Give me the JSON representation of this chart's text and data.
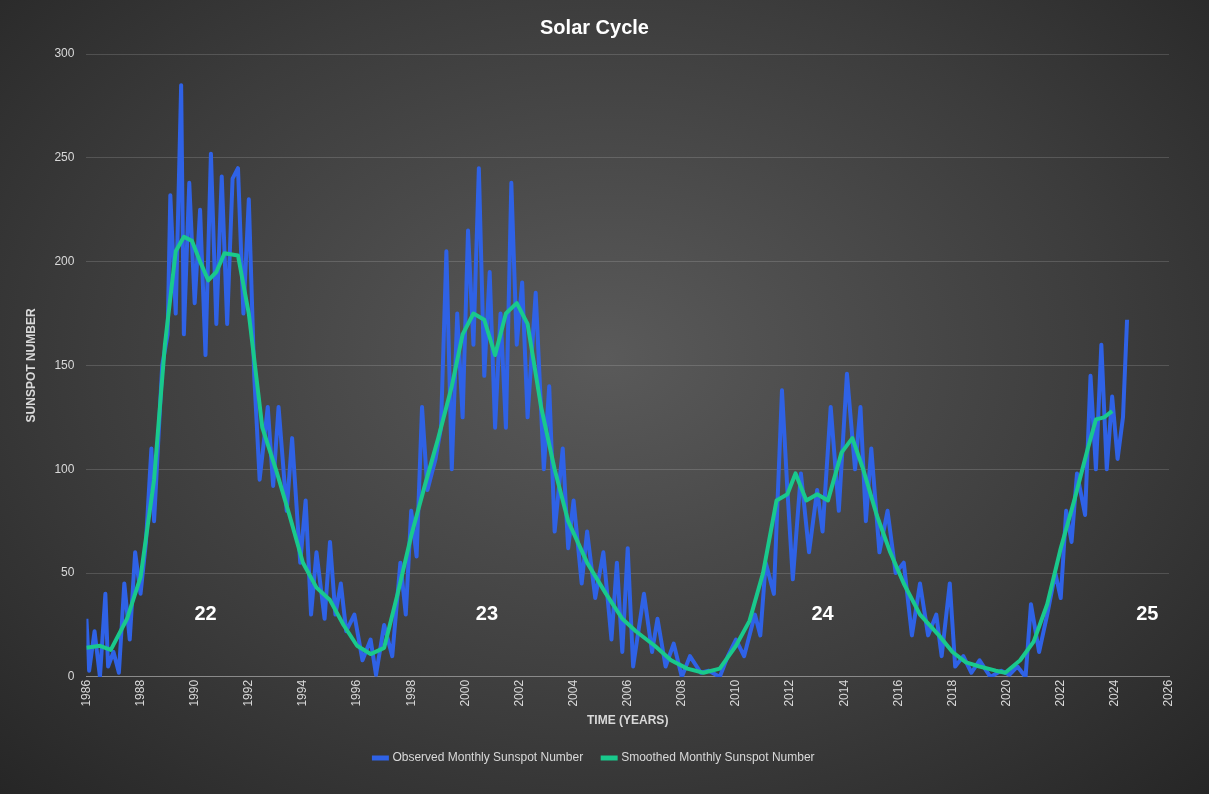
{
  "chart_data": {
    "type": "line",
    "title": "Solar Cycle",
    "xlabel": "TIME (YEARS)",
    "ylabel": "SUNSPOT NUMBER",
    "xlim": [
      1986,
      2026
    ],
    "xticks": [
      1986,
      1988,
      1990,
      1992,
      1994,
      1996,
      1998,
      2000,
      2002,
      2004,
      2006,
      2008,
      2010,
      2012,
      2014,
      2016,
      2018,
      2020,
      2022,
      2024,
      2026
    ],
    "ylim": [
      0,
      300
    ],
    "yticks": [
      0,
      50,
      100,
      150,
      200,
      250,
      300
    ],
    "grid": "y",
    "legend": "bottom",
    "series": [
      {
        "name": "Observed Monthly Sunspot Number",
        "color": "#2f62e6",
        "x": [
          1986.0,
          1986.1,
          1986.3,
          1986.5,
          1986.7,
          1986.8,
          1987.0,
          1987.2,
          1987.4,
          1987.6,
          1987.8,
          1988.0,
          1988.2,
          1988.4,
          1988.5,
          1988.8,
          1989.0,
          1989.1,
          1989.3,
          1989.5,
          1989.6,
          1989.8,
          1990.0,
          1990.2,
          1990.4,
          1990.6,
          1990.8,
          1991.0,
          1991.2,
          1991.4,
          1991.6,
          1991.8,
          1992.0,
          1992.2,
          1992.4,
          1992.7,
          1992.9,
          1993.1,
          1993.4,
          1993.6,
          1993.9,
          1994.1,
          1994.3,
          1994.5,
          1994.8,
          1995.0,
          1995.2,
          1995.4,
          1995.6,
          1995.9,
          1996.2,
          1996.5,
          1996.7,
          1997.0,
          1997.3,
          1997.6,
          1997.8,
          1998.0,
          1998.2,
          1998.4,
          1998.6,
          1998.9,
          1999.1,
          1999.3,
          1999.5,
          1999.7,
          1999.9,
          2000.1,
          2000.3,
          2000.5,
          2000.7,
          2000.9,
          2001.1,
          2001.3,
          2001.5,
          2001.7,
          2001.9,
          2002.1,
          2002.3,
          2002.6,
          2002.9,
          2003.1,
          2003.3,
          2003.6,
          2003.8,
          2004.0,
          2004.3,
          2004.5,
          2004.8,
          2005.1,
          2005.4,
          2005.6,
          2005.8,
          2006.0,
          2006.2,
          2006.6,
          2006.9,
          2007.1,
          2007.4,
          2007.7,
          2008.0,
          2008.3,
          2008.7,
          2009.0,
          2009.4,
          2009.7,
          2010.0,
          2010.3,
          2010.7,
          2010.9,
          2011.1,
          2011.4,
          2011.7,
          2011.9,
          2012.1,
          2012.4,
          2012.7,
          2013.0,
          2013.2,
          2013.5,
          2013.8,
          2014.1,
          2014.4,
          2014.6,
          2014.8,
          2015.0,
          2015.3,
          2015.6,
          2015.9,
          2016.2,
          2016.5,
          2016.8,
          2017.1,
          2017.4,
          2017.6,
          2017.9,
          2018.1,
          2018.4,
          2018.7,
          2019.0,
          2019.4,
          2019.8,
          2020.1,
          2020.4,
          2020.7,
          2020.9,
          2021.2,
          2021.5,
          2021.8,
          2022.0,
          2022.2,
          2022.4,
          2022.6,
          2022.9,
          2023.1,
          2023.3,
          2023.5,
          2023.7,
          2023.9,
          2024.1,
          2024.3,
          2024.45
        ],
        "values": [
          28,
          3,
          22,
          0,
          40,
          5,
          12,
          2,
          45,
          18,
          60,
          40,
          65,
          110,
          75,
          150,
          165,
          232,
          175,
          285,
          165,
          238,
          180,
          225,
          155,
          252,
          170,
          241,
          170,
          240,
          245,
          175,
          230,
          145,
          95,
          130,
          92,
          130,
          80,
          115,
          55,
          85,
          30,
          60,
          28,
          65,
          30,
          45,
          22,
          30,
          8,
          18,
          1,
          25,
          10,
          55,
          30,
          80,
          58,
          130,
          90,
          105,
          120,
          205,
          100,
          175,
          125,
          215,
          160,
          245,
          145,
          195,
          120,
          175,
          120,
          238,
          160,
          190,
          125,
          185,
          100,
          140,
          70,
          110,
          62,
          85,
          45,
          70,
          38,
          60,
          18,
          55,
          12,
          62,
          5,
          40,
          12,
          28,
          5,
          16,
          0,
          10,
          2,
          3,
          0,
          10,
          18,
          10,
          30,
          20,
          55,
          40,
          138,
          90,
          47,
          98,
          60,
          90,
          70,
          130,
          80,
          146,
          100,
          130,
          75,
          110,
          60,
          80,
          50,
          55,
          20,
          45,
          20,
          30,
          10,
          45,
          5,
          10,
          2,
          8,
          0,
          3,
          1,
          5,
          0,
          35,
          12,
          30,
          50,
          38,
          80,
          65,
          98,
          78,
          145,
          100,
          160,
          100,
          135,
          105,
          125,
          172
        ]
      },
      {
        "name": "Smoothed Monthly Sunspot Number",
        "color": "#19c98c",
        "x": [
          1986.0,
          1986.5,
          1986.9,
          1987.5,
          1988.0,
          1988.5,
          1988.9,
          1989.3,
          1989.6,
          1989.9,
          1990.2,
          1990.5,
          1990.8,
          1991.1,
          1991.6,
          1992.0,
          1992.5,
          1993.0,
          1993.5,
          1994.0,
          1994.5,
          1995.0,
          1995.5,
          1996.0,
          1996.5,
          1997.0,
          1997.5,
          1998.0,
          1998.5,
          1999.0,
          1999.5,
          1999.9,
          2000.3,
          2000.7,
          2001.1,
          2001.5,
          2001.9,
          2002.3,
          2002.8,
          2003.3,
          2003.8,
          2004.5,
          2005.2,
          2005.8,
          2006.3,
          2007.0,
          2007.6,
          2008.2,
          2008.8,
          2009.4,
          2010.0,
          2010.5,
          2011.0,
          2011.5,
          2011.9,
          2012.2,
          2012.6,
          2013.0,
          2013.4,
          2013.9,
          2014.3,
          2014.7,
          2015.2,
          2015.7,
          2016.2,
          2016.8,
          2017.5,
          2018.0,
          2018.5,
          2019.0,
          2019.6,
          2019.95,
          2020.5,
          2021.0,
          2021.5,
          2022.0,
          2022.5,
          2023.0,
          2023.3,
          2023.6,
          2023.9
        ],
        "values": [
          14,
          15,
          13,
          28,
          48,
          95,
          160,
          205,
          212,
          210,
          200,
          191,
          195,
          204,
          203,
          175,
          120,
          100,
          78,
          55,
          43,
          37,
          25,
          15,
          11,
          14,
          40,
          68,
          92,
          115,
          140,
          165,
          175,
          172,
          155,
          175,
          180,
          170,
          130,
          100,
          75,
          55,
          40,
          28,
          22,
          15,
          8,
          4,
          2,
          4,
          15,
          27,
          50,
          85,
          88,
          98,
          85,
          88,
          85,
          108,
          115,
          100,
          78,
          60,
          45,
          30,
          20,
          12,
          7,
          5,
          3,
          2,
          8,
          17,
          35,
          62,
          85,
          110,
          124,
          125,
          128
        ]
      }
    ],
    "annotations": [
      "22",
      "23",
      "24",
      "25"
    ]
  }
}
